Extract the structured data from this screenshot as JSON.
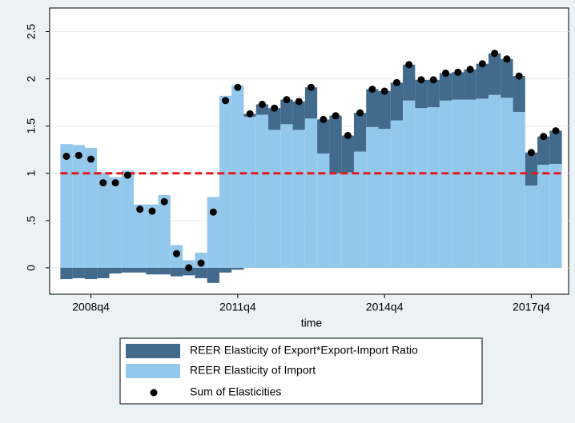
{
  "chart_data": {
    "type": "bar",
    "x_label": "time",
    "categories": [
      null,
      null,
      "2008q4",
      null,
      null,
      null,
      null,
      null,
      null,
      null,
      null,
      null,
      null,
      null,
      "2011q4",
      null,
      null,
      null,
      null,
      null,
      null,
      null,
      null,
      null,
      null,
      null,
      "2014q4",
      null,
      null,
      null,
      null,
      null,
      null,
      null,
      null,
      null,
      null,
      null,
      "2017q4",
      null,
      null
    ],
    "series": [
      {
        "name": "REER Elasticity of Export*Export-Import Ratio",
        "color": "#426a8c",
        "values": [
          -0.12,
          -0.11,
          -0.12,
          -0.11,
          -0.06,
          -0.05,
          -0.05,
          -0.07,
          -0.07,
          -0.09,
          -0.08,
          -0.11,
          -0.16,
          -0.05,
          -0.02,
          0.03,
          0.11,
          0.23,
          0.26,
          0.3,
          0.33,
          0.36,
          0.61,
          0.39,
          0.41,
          0.4,
          0.4,
          0.4,
          0.38,
          0.3,
          0.29,
          0.29,
          0.29,
          0.32,
          0.37,
          0.44,
          0.41,
          0.38,
          0.35,
          0.3,
          0.35
        ]
      },
      {
        "name": "REER Elasticity of Import",
        "color": "#93c8ec",
        "values": [
          1.31,
          1.3,
          1.27,
          1.01,
          0.96,
          1.03,
          0.67,
          0.67,
          0.77,
          0.24,
          0.08,
          0.16,
          0.75,
          1.82,
          1.93,
          1.6,
          1.62,
          1.46,
          1.52,
          1.46,
          1.58,
          1.21,
          1.0,
          1.01,
          1.23,
          1.49,
          1.47,
          1.56,
          1.77,
          1.69,
          1.7,
          1.77,
          1.78,
          1.78,
          1.79,
          1.83,
          1.8,
          1.65,
          0.87,
          1.09,
          1.1
        ]
      },
      {
        "name": "Sum of Elasticities",
        "color": "#000000",
        "values": [
          1.18,
          1.19,
          1.15,
          0.9,
          0.9,
          0.98,
          0.62,
          0.6,
          0.7,
          0.15,
          0.0,
          0.05,
          0.59,
          1.77,
          1.91,
          1.63,
          1.73,
          1.69,
          1.78,
          1.76,
          1.91,
          1.57,
          1.61,
          1.4,
          1.64,
          1.89,
          1.87,
          1.96,
          2.15,
          1.99,
          1.99,
          2.06,
          2.07,
          2.1,
          2.16,
          2.27,
          2.21,
          2.03,
          1.22,
          1.39,
          1.45
        ]
      }
    ],
    "reference_line": 1,
    "reference_color": "#e41a1c",
    "ylim": [
      -0.28,
      2.75
    ],
    "yticks": [
      0,
      {
        "value": 0.5,
        "label": ".5"
      },
      1,
      1.5,
      2,
      2.5
    ],
    "grid": true
  }
}
